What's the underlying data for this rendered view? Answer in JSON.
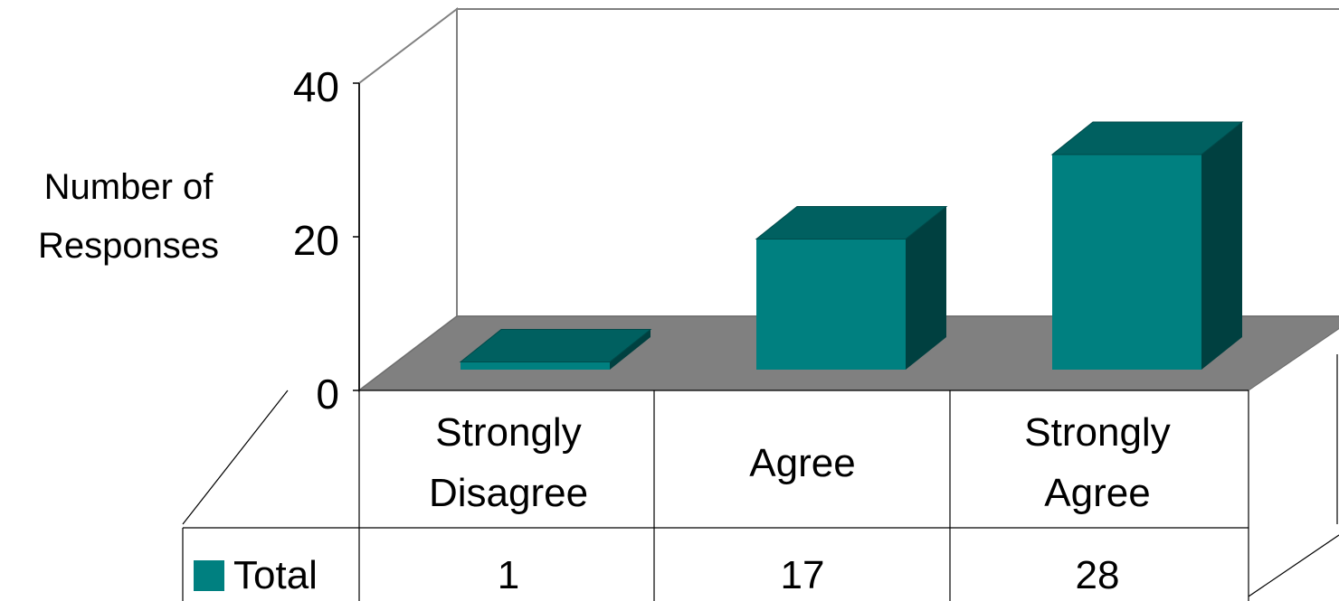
{
  "chart_data": {
    "type": "bar",
    "style": "3d",
    "categories": [
      "Strongly Disagree",
      "Agree",
      "Strongly Agree"
    ],
    "category_lines": [
      [
        "Strongly",
        "Disagree"
      ],
      [
        "Agree"
      ],
      [
        "Strongly",
        "Agree"
      ]
    ],
    "series": [
      {
        "name": "Total",
        "values": [
          1,
          17,
          28
        ],
        "color": "#008080"
      }
    ],
    "ylabel": "Number of Responses",
    "ylabel_lines": [
      "Number of",
      "Responses"
    ],
    "yticks": [
      "0",
      "20",
      "40"
    ],
    "ylim": [
      0,
      40
    ],
    "data_table": true,
    "floor_color": "#808080"
  }
}
